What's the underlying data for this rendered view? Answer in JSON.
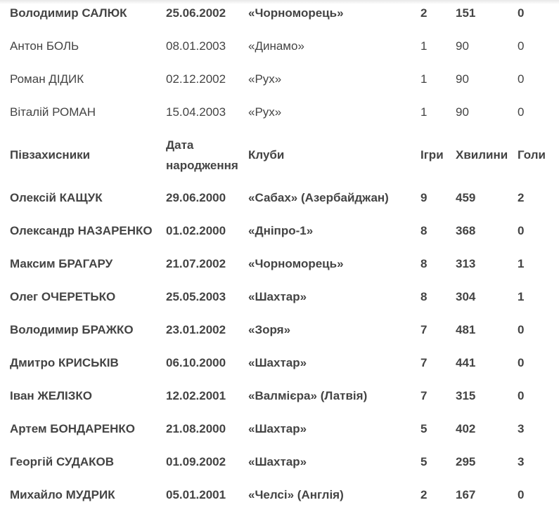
{
  "top_rows": [
    {
      "name": "Володимир САЛЮК",
      "dob": "25.06.2002",
      "club": "«Чорноморець»",
      "games": "2",
      "minutes": "151",
      "goals": "0",
      "bold": true
    },
    {
      "name": "Антон БОЛЬ",
      "dob": "08.01.2003",
      "club": "«Динамо»",
      "games": "1",
      "minutes": "90",
      "goals": "0",
      "bold": false
    },
    {
      "name": "Роман ДІДИК",
      "dob": "02.12.2002",
      "club": "«Рух»",
      "games": "1",
      "minutes": "90",
      "goals": "0",
      "bold": false
    },
    {
      "name": "Віталій РОМАН",
      "dob": "15.04.2003",
      "club": "«Рух»",
      "games": "1",
      "minutes": "90",
      "goals": "0",
      "bold": false
    }
  ],
  "header": {
    "name": "Півзахисники",
    "dob_line1": "Дата",
    "dob_line2": "народження",
    "club": "Клуби",
    "games": "Ігри",
    "minutes": "Хвилини",
    "goals": "Голи"
  },
  "rows": [
    {
      "name": "Олексій КАЩУК",
      "dob": "29.06.2000",
      "club": "«Сабах» (Азербайджан)",
      "games": "9",
      "minutes": "459",
      "goals": "2"
    },
    {
      "name": "Олександр НАЗАРЕНКО",
      "dob": "01.02.2000",
      "club": "«Дніпро-1»",
      "games": "8",
      "minutes": "368",
      "goals": "0"
    },
    {
      "name": "Максим БРАГАРУ",
      "dob": "21.07.2002",
      "club": "«Чорноморець»",
      "games": "8",
      "minutes": "313",
      "goals": "1"
    },
    {
      "name": "Олег ОЧЕРЕТЬКО",
      "dob": "25.05.2003",
      "club": "«Шахтар»",
      "games": "8",
      "minutes": "304",
      "goals": "1"
    },
    {
      "name": "Володимир БРАЖКО",
      "dob": "23.01.2002",
      "club": "«Зоря»",
      "games": "7",
      "minutes": "481",
      "goals": "0"
    },
    {
      "name": "Дмитро КРИСЬКІВ",
      "dob": "06.10.2000",
      "club": "«Шахтар»",
      "games": "7",
      "minutes": "441",
      "goals": "0"
    },
    {
      "name": "Іван ЖЕЛІЗКО",
      "dob": "12.02.2001",
      "club": "«Валмієра» (Латвія)",
      "games": "7",
      "minutes": "315",
      "goals": "0"
    },
    {
      "name": "Артем БОНДАРЕНКО",
      "dob": "21.08.2000",
      "club": "«Шахтар»",
      "games": "5",
      "minutes": "402",
      "goals": "3"
    },
    {
      "name": "Георгій СУДАКОВ",
      "dob": "01.09.2002",
      "club": "«Шахтар»",
      "games": "5",
      "minutes": "295",
      "goals": "3"
    },
    {
      "name": "Михайло МУДРИК",
      "dob": "05.01.2001",
      "club": "«Челсі» (Англія)",
      "games": "2",
      "minutes": "167",
      "goals": "0"
    }
  ]
}
